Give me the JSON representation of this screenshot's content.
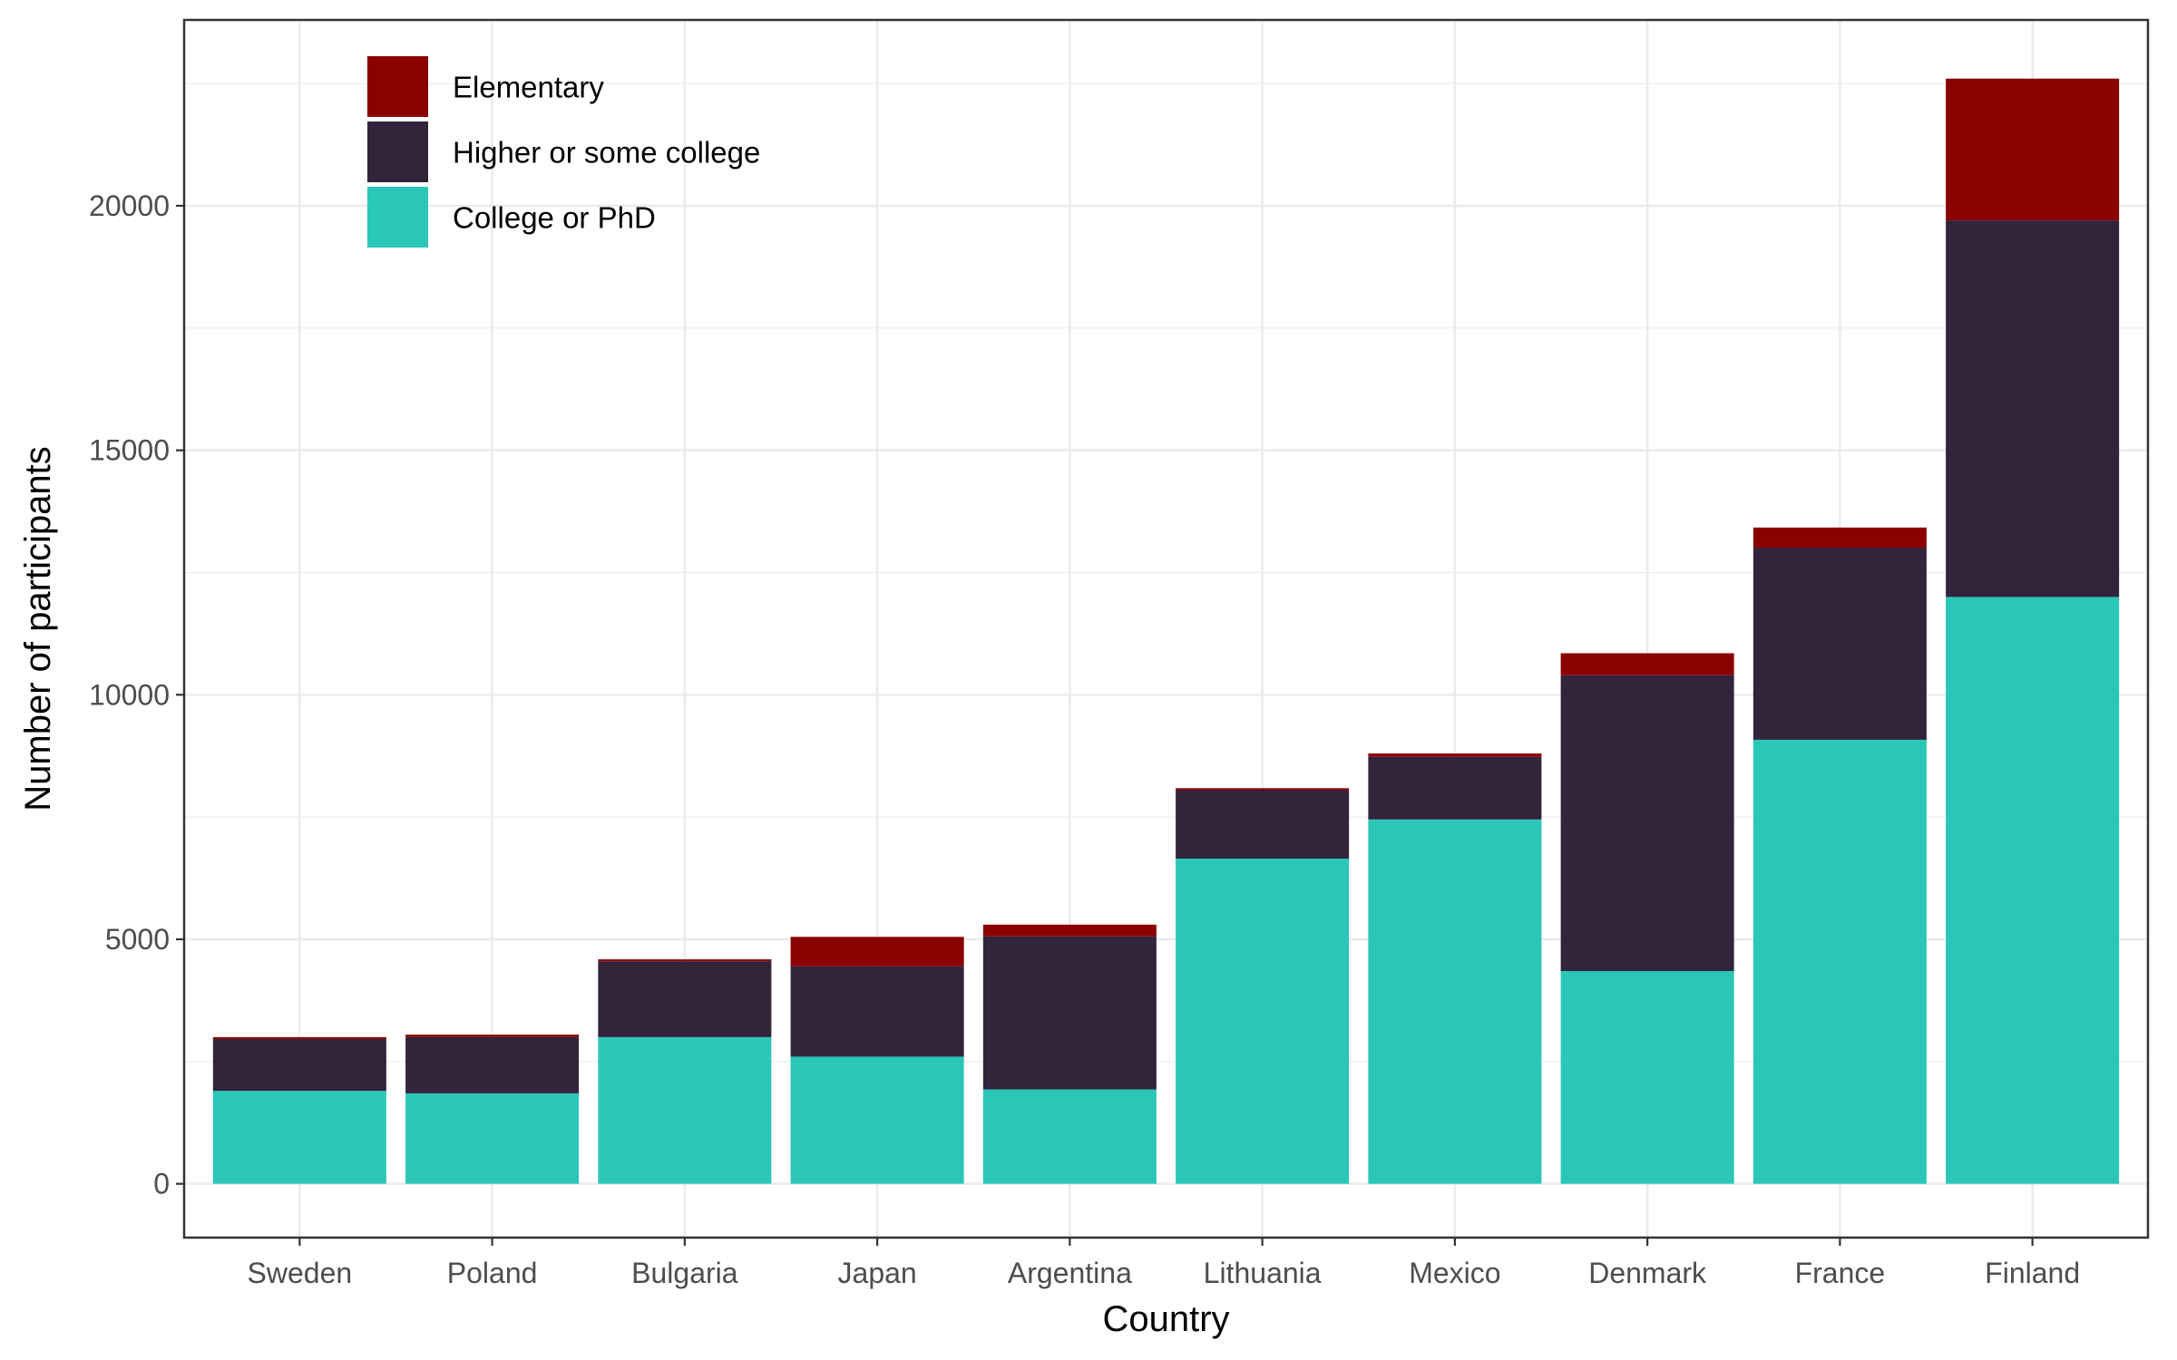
{
  "chart_data": {
    "type": "bar",
    "stacked": true,
    "xlabel": "Country",
    "ylabel": "Number of participants",
    "categories": [
      "Sweden",
      "Poland",
      "Bulgaria",
      "Japan",
      "Argentina",
      "Lithuania",
      "Mexico",
      "Denmark",
      "France",
      "Finland"
    ],
    "series": [
      {
        "name": "College or PhD",
        "color": "#2ac7b8",
        "values": [
          1900,
          1850,
          3000,
          2600,
          1930,
          6650,
          7450,
          4350,
          9080,
          12000
        ]
      },
      {
        "name": "Higher or some college",
        "color": "#31243b",
        "values": [
          1060,
          1150,
          1550,
          1850,
          3130,
          1400,
          1280,
          6050,
          3930,
          7700
        ]
      },
      {
        "name": "Elementary",
        "color": "#8b0000",
        "values": [
          40,
          50,
          40,
          600,
          240,
          40,
          70,
          450,
          410,
          2900
        ]
      }
    ],
    "legend_order": [
      "Elementary",
      "Higher or some college",
      "College or PhD"
    ],
    "legend_position": "top-left (inside)",
    "ylim": [
      -1100,
      23800
    ],
    "yticks": [
      0,
      5000,
      10000,
      15000,
      20000
    ],
    "grid": true,
    "theme": "bw"
  }
}
